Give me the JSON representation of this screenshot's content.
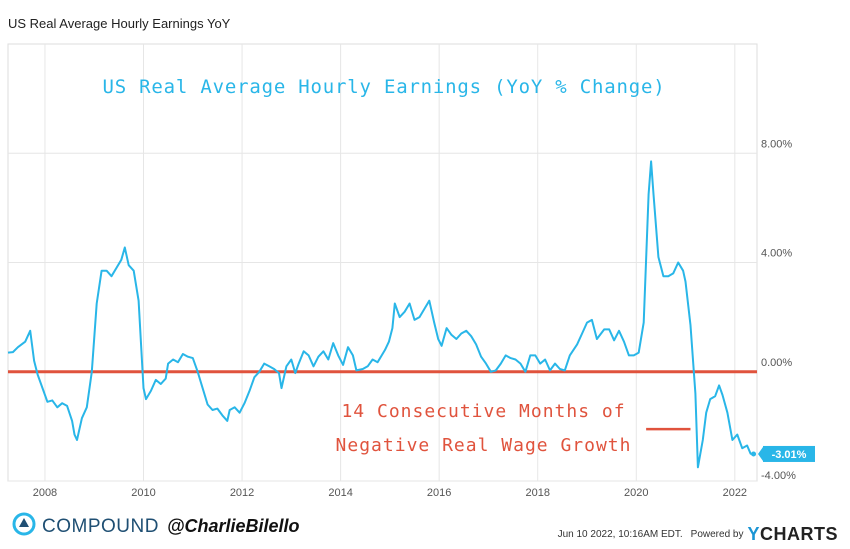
{
  "header": {
    "title": "US Real Average Hourly Earnings YoY"
  },
  "chart_data": {
    "type": "line",
    "title": "US Real Average Hourly Earnings (YoY % Change)",
    "series": [
      {
        "name": "US Real Average Hourly Earnings YoY",
        "color": "#29b6e8",
        "points": [
          [
            2007.25,
            0.7
          ],
          [
            2007.35,
            0.72
          ],
          [
            2007.45,
            0.9
          ],
          [
            2007.6,
            1.1
          ],
          [
            2007.7,
            1.5
          ],
          [
            2007.78,
            0.4
          ],
          [
            2007.85,
            -0.1
          ],
          [
            2007.95,
            -0.6
          ],
          [
            2008.05,
            -1.1
          ],
          [
            2008.15,
            -1.05
          ],
          [
            2008.25,
            -1.3
          ],
          [
            2008.35,
            -1.15
          ],
          [
            2008.45,
            -1.25
          ],
          [
            2008.55,
            -1.8
          ],
          [
            2008.6,
            -2.3
          ],
          [
            2008.65,
            -2.5
          ],
          [
            2008.75,
            -1.7
          ],
          [
            2008.85,
            -1.3
          ],
          [
            2008.95,
            0.0
          ],
          [
            2009.05,
            2.5
          ],
          [
            2009.15,
            3.7
          ],
          [
            2009.25,
            3.7
          ],
          [
            2009.35,
            3.5
          ],
          [
            2009.45,
            3.8
          ],
          [
            2009.55,
            4.1
          ],
          [
            2009.62,
            4.55
          ],
          [
            2009.7,
            3.9
          ],
          [
            2009.8,
            3.7
          ],
          [
            2009.9,
            2.6
          ],
          [
            2010.0,
            -0.6
          ],
          [
            2010.05,
            -1.0
          ],
          [
            2010.15,
            -0.7
          ],
          [
            2010.25,
            -0.3
          ],
          [
            2010.35,
            -0.45
          ],
          [
            2010.45,
            -0.25
          ],
          [
            2010.5,
            0.3
          ],
          [
            2010.6,
            0.45
          ],
          [
            2010.7,
            0.35
          ],
          [
            2010.8,
            0.65
          ],
          [
            2010.9,
            0.55
          ],
          [
            2011.0,
            0.5
          ],
          [
            2011.1,
            0.0
          ],
          [
            2011.2,
            -0.6
          ],
          [
            2011.3,
            -1.2
          ],
          [
            2011.4,
            -1.4
          ],
          [
            2011.5,
            -1.35
          ],
          [
            2011.6,
            -1.6
          ],
          [
            2011.7,
            -1.8
          ],
          [
            2011.75,
            -1.4
          ],
          [
            2011.85,
            -1.3
          ],
          [
            2011.95,
            -1.5
          ],
          [
            2012.05,
            -1.15
          ],
          [
            2012.15,
            -0.7
          ],
          [
            2012.25,
            -0.2
          ],
          [
            2012.35,
            0.0
          ],
          [
            2012.45,
            0.3
          ],
          [
            2012.55,
            0.2
          ],
          [
            2012.65,
            0.1
          ],
          [
            2012.75,
            -0.05
          ],
          [
            2012.8,
            -0.6
          ],
          [
            2012.9,
            0.2
          ],
          [
            2013.0,
            0.45
          ],
          [
            2013.08,
            -0.05
          ],
          [
            2013.15,
            0.3
          ],
          [
            2013.25,
            0.75
          ],
          [
            2013.35,
            0.6
          ],
          [
            2013.45,
            0.2
          ],
          [
            2013.55,
            0.55
          ],
          [
            2013.65,
            0.75
          ],
          [
            2013.75,
            0.45
          ],
          [
            2013.85,
            1.05
          ],
          [
            2013.95,
            0.6
          ],
          [
            2014.05,
            0.25
          ],
          [
            2014.15,
            0.9
          ],
          [
            2014.25,
            0.6
          ],
          [
            2014.32,
            0.05
          ],
          [
            2014.45,
            0.1
          ],
          [
            2014.55,
            0.2
          ],
          [
            2014.65,
            0.45
          ],
          [
            2014.75,
            0.35
          ],
          [
            2014.9,
            0.8
          ],
          [
            2014.98,
            1.1
          ],
          [
            2015.05,
            1.6
          ],
          [
            2015.1,
            2.5
          ],
          [
            2015.2,
            2.0
          ],
          [
            2015.3,
            2.2
          ],
          [
            2015.4,
            2.5
          ],
          [
            2015.5,
            1.9
          ],
          [
            2015.6,
            2.0
          ],
          [
            2015.7,
            2.3
          ],
          [
            2015.8,
            2.6
          ],
          [
            2015.9,
            1.8
          ],
          [
            2015.98,
            1.2
          ],
          [
            2016.05,
            0.95
          ],
          [
            2016.15,
            1.6
          ],
          [
            2016.25,
            1.35
          ],
          [
            2016.35,
            1.2
          ],
          [
            2016.45,
            1.4
          ],
          [
            2016.55,
            1.5
          ],
          [
            2016.65,
            1.3
          ],
          [
            2016.75,
            1.0
          ],
          [
            2016.85,
            0.55
          ],
          [
            2016.95,
            0.3
          ],
          [
            2017.05,
            0.0
          ],
          [
            2017.15,
            0.05
          ],
          [
            2017.25,
            0.3
          ],
          [
            2017.35,
            0.6
          ],
          [
            2017.45,
            0.5
          ],
          [
            2017.55,
            0.45
          ],
          [
            2017.65,
            0.3
          ],
          [
            2017.75,
            0.0
          ],
          [
            2017.85,
            0.6
          ],
          [
            2017.95,
            0.6
          ],
          [
            2018.05,
            0.3
          ],
          [
            2018.15,
            0.45
          ],
          [
            2018.25,
            0.05
          ],
          [
            2018.35,
            0.3
          ],
          [
            2018.45,
            0.1
          ],
          [
            2018.55,
            0.05
          ],
          [
            2018.65,
            0.6
          ],
          [
            2018.8,
            1.0
          ],
          [
            2018.9,
            1.4
          ],
          [
            2019.0,
            1.8
          ],
          [
            2019.1,
            1.9
          ],
          [
            2019.2,
            1.2
          ],
          [
            2019.35,
            1.55
          ],
          [
            2019.45,
            1.55
          ],
          [
            2019.55,
            1.15
          ],
          [
            2019.65,
            1.5
          ],
          [
            2019.75,
            1.1
          ],
          [
            2019.85,
            0.6
          ],
          [
            2019.95,
            0.6
          ],
          [
            2020.05,
            0.7
          ],
          [
            2020.15,
            1.8
          ],
          [
            2020.25,
            6.5
          ],
          [
            2020.3,
            7.7
          ],
          [
            2020.35,
            6.5
          ],
          [
            2020.45,
            4.2
          ],
          [
            2020.55,
            3.5
          ],
          [
            2020.65,
            3.5
          ],
          [
            2020.75,
            3.6
          ],
          [
            2020.85,
            4.0
          ],
          [
            2020.95,
            3.7
          ],
          [
            2021.0,
            3.3
          ],
          [
            2021.1,
            1.7
          ],
          [
            2021.2,
            -0.8
          ],
          [
            2021.25,
            -3.5
          ],
          [
            2021.35,
            -2.5
          ],
          [
            2021.42,
            -1.5
          ],
          [
            2021.5,
            -1.0
          ],
          [
            2021.6,
            -0.9
          ],
          [
            2021.68,
            -0.5
          ],
          [
            2021.75,
            -0.85
          ],
          [
            2021.85,
            -1.5
          ],
          [
            2021.95,
            -2.5
          ],
          [
            2022.05,
            -2.3
          ],
          [
            2022.15,
            -2.8
          ],
          [
            2022.25,
            -2.7
          ],
          [
            2022.32,
            -3.0
          ],
          [
            2022.38,
            -3.01
          ]
        ],
        "last_value_label": "-3.01%"
      }
    ],
    "reference_line": {
      "value": 0,
      "color": "#e0533d"
    },
    "xlabel": "",
    "ylabel": "",
    "x_ticks": [
      {
        "value": 2008,
        "label": "2008"
      },
      {
        "value": 2010,
        "label": "2010"
      },
      {
        "value": 2012,
        "label": "2012"
      },
      {
        "value": 2014,
        "label": "2014"
      },
      {
        "value": 2016,
        "label": "2016"
      },
      {
        "value": 2018,
        "label": "2018"
      },
      {
        "value": 2020,
        "label": "2020"
      },
      {
        "value": 2022,
        "label": "2022"
      }
    ],
    "y_ticks": [
      {
        "value": 8,
        "label": "8.00%"
      },
      {
        "value": 4,
        "label": "4.00%"
      },
      {
        "value": 0,
        "label": "0.00%"
      },
      {
        "value": -4,
        "label": "-4.00%"
      }
    ],
    "xlim": [
      2007.25,
      2022.45
    ],
    "ylim": [
      -4.0,
      12.0
    ],
    "grid": true,
    "annotations": [
      {
        "name": "title-annotation",
        "text": "US Real Average Hourly Earnings (YoY % Change)",
        "color": "#29b6e8",
        "at": [
          2014.88,
          10.2
        ]
      },
      {
        "name": "note-line-1",
        "text": "14 Consecutive Months of",
        "color": "#e0533d",
        "at": [
          2016.9,
          -1.65
        ]
      },
      {
        "name": "note-line-2",
        "text": "Negative Real Wage Growth",
        "color": "#e0533d",
        "at": [
          2016.9,
          -2.9
        ]
      }
    ],
    "annotation_marker": {
      "x_range": [
        2020.2,
        2021.1
      ],
      "y": -2.1,
      "color": "#e0533d"
    }
  },
  "footer": {
    "brand": "COMPOUND",
    "handle": "@CharlieBilello",
    "timestamp": "Jun 10 2022, 10:16AM EDT.",
    "powered_by": "Powered by",
    "ycharts_y": "Y",
    "ycharts_rest": "CHARTS"
  }
}
